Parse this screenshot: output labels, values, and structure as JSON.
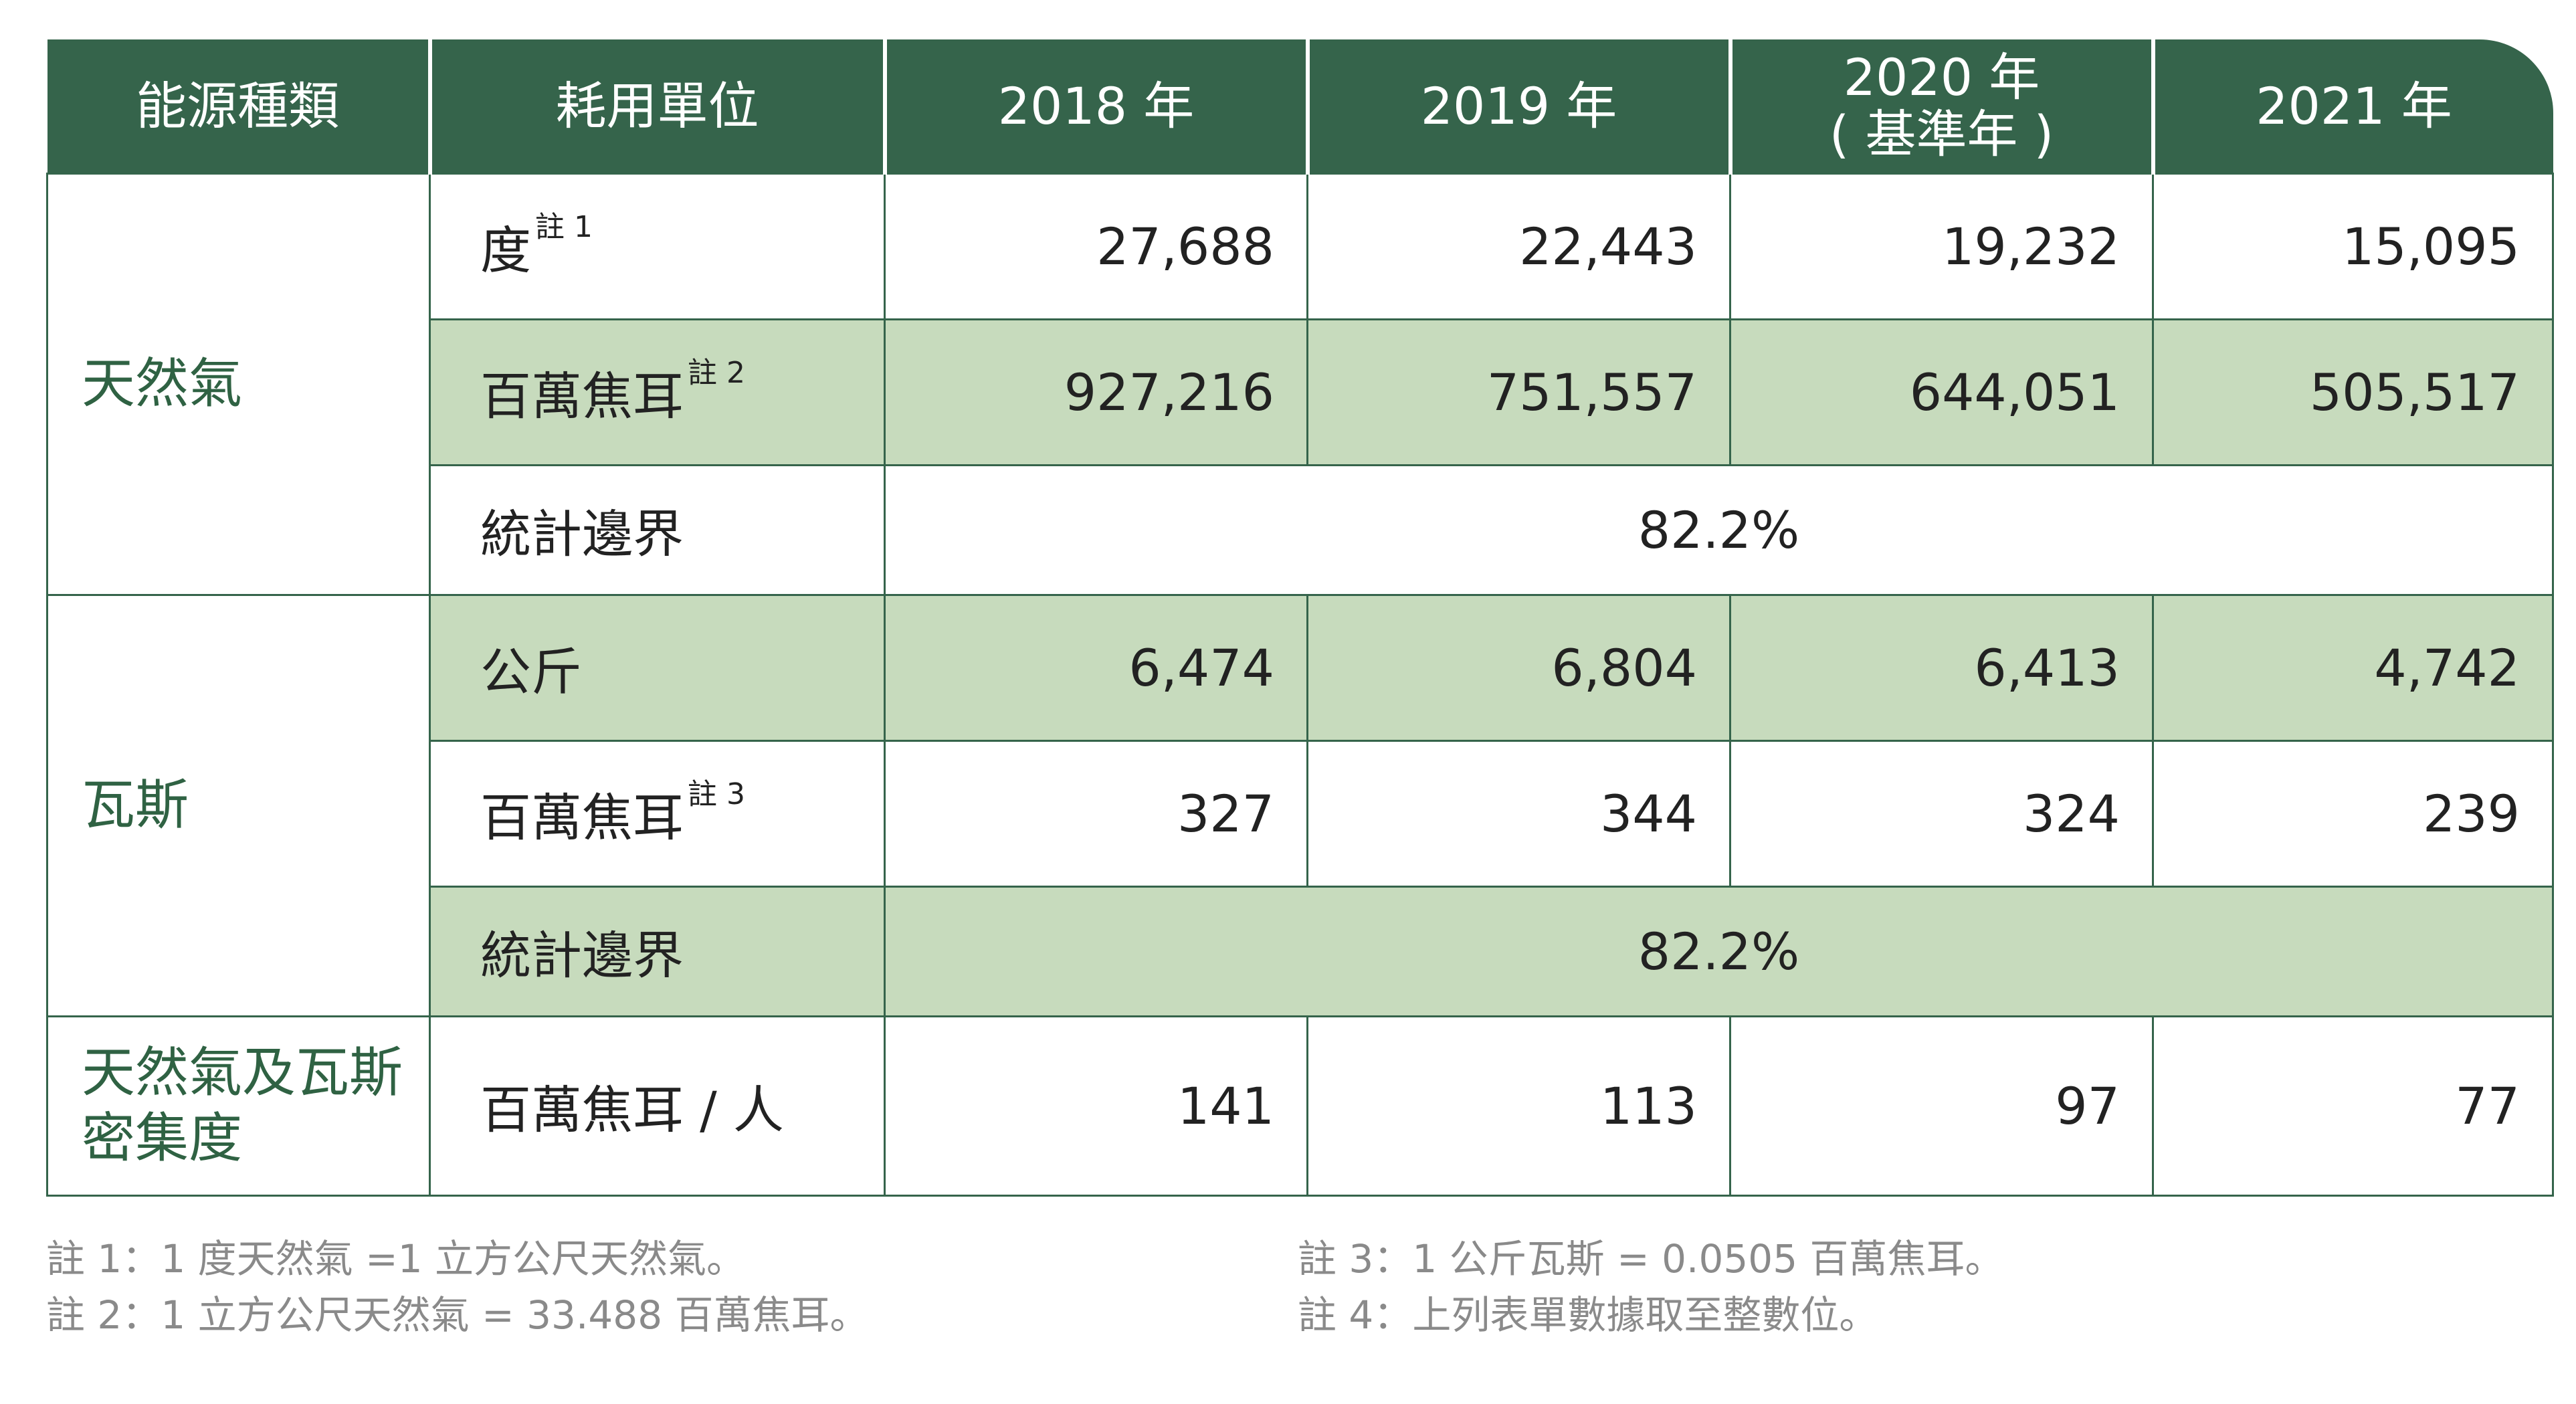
{
  "table": {
    "headers": {
      "energy_type": "能源種類",
      "unit": "耗用單位",
      "y2018": "2018 年",
      "y2019": "2019 年",
      "y2020_line1": "2020 年",
      "y2020_line2": "( 基準年 )",
      "y2021": "2021 年"
    },
    "natural_gas": {
      "category": "天然氣",
      "row_degree": {
        "unit": "度",
        "note": "註 1",
        "values": [
          "27,688",
          "22,443",
          "19,232",
          "15,095"
        ]
      },
      "row_mj": {
        "unit": "百萬焦耳",
        "note": "註 2",
        "values": [
          "927,216",
          "751,557",
          "644,051",
          "505,517"
        ]
      },
      "row_scope": {
        "unit": "統計邊界",
        "value": "82.2%"
      }
    },
    "gas": {
      "category": "瓦斯",
      "row_kg": {
        "unit": "公斤",
        "values": [
          "6,474",
          "6,804",
          "6,413",
          "4,742"
        ]
      },
      "row_mj": {
        "unit": "百萬焦耳",
        "note": "註 3",
        "values": [
          "327",
          "344",
          "324",
          "239"
        ]
      },
      "row_scope": {
        "unit": "統計邊界",
        "value": "82.2%"
      }
    },
    "intensity": {
      "category_line1": "天然氣及瓦斯",
      "category_line2": "密集度",
      "unit": "百萬焦耳 / 人",
      "values": [
        "141",
        "113",
        "97",
        "77"
      ]
    }
  },
  "footnotes": {
    "note1": "註 1：1 度天然氣 =1 立方公尺天然氣。",
    "note2": "註 2：1 立方公尺天然氣 = 33.488 百萬焦耳。",
    "note3": "註 3：1 公斤瓦斯 = 0.0505 百萬焦耳。",
    "note4": "註 4：上列表單數據取至整數位。"
  },
  "colors": {
    "header_bg": "#35644b",
    "row_shade": "#c7dbbd",
    "category_text": "#2f6243",
    "footnote_text": "#8a8a8a"
  }
}
